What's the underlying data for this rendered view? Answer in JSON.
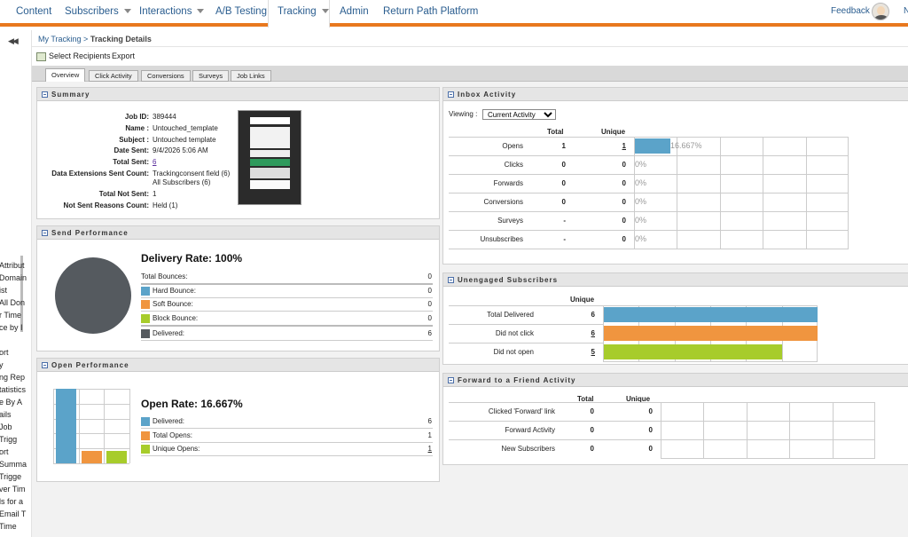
{
  "nav": {
    "items": [
      {
        "label": "Content",
        "caret": false
      },
      {
        "label": "Subscribers",
        "caret": true
      },
      {
        "label": "Interactions",
        "caret": true
      },
      {
        "label": "A/B Testing",
        "caret": false
      },
      {
        "label": "Tracking",
        "caret": true
      },
      {
        "label": "Admin",
        "caret": false
      },
      {
        "label": "Return Path Platform",
        "caret": false
      }
    ],
    "feedback": "Feedback",
    "overflow": "N",
    "accent": "#e8781e"
  },
  "leftrail": {
    "collapse_icon": "double-chevron-left-icon",
    "items": [
      "Attribut",
      "Domain",
      "ist",
      "All Don",
      "r Time",
      "ce by I",
      "ort",
      "y",
      "ng Rep",
      "tatistics",
      "e By A",
      "ails",
      "Job",
      "Trigg",
      "ort",
      "Summa",
      "Trigge",
      "ver Tim",
      "ls for a",
      "Email T",
      "Time"
    ]
  },
  "breadcrumb": {
    "root": "My Tracking",
    "separator": ">",
    "current": "Tracking Details"
  },
  "toolbar": {
    "select_recipients": "Select Recipients",
    "export": "Export"
  },
  "tabs": [
    "Overview",
    "Click Activity",
    "Conversions",
    "Surveys",
    "Job Links"
  ],
  "summary": {
    "title": "Summary",
    "labels": {
      "job_id": "Job ID:",
      "name": "Name :",
      "subject": "Subject :",
      "date_sent": "Date Sent:",
      "total_sent": "Total Sent:",
      "de_sent_count": "Data Extensions Sent Count:",
      "total_not_sent": "Total Not Sent:",
      "not_sent_reasons": "Not Sent Reasons Count:"
    },
    "values": {
      "job_id": "389444",
      "name": "Untouched_template",
      "subject": "Untouched template",
      "date_sent": "9/4/2026 5:06 AM",
      "total_sent": "6",
      "de_line1": "Trackingconsent field (6)",
      "de_line2": "All Subscribers (6)",
      "total_not_sent": "1",
      "not_sent_reasons": "Held (1)"
    }
  },
  "send_performance": {
    "title": "Send Performance",
    "delivery_rate": "Delivery Rate: 100%",
    "rows": [
      {
        "label": "Total Bounces:",
        "value": "0",
        "color": ""
      },
      {
        "label": "Hard Bounce:",
        "value": "0",
        "color": "#5ba3c9"
      },
      {
        "label": "Soft Bounce:",
        "value": "0",
        "color": "#f0953f"
      },
      {
        "label": "Block Bounce:",
        "value": "0",
        "color": "#a7cc2b"
      },
      {
        "label": "Delivered:",
        "value": "6",
        "color": "#555a5f"
      }
    ],
    "pie_color": "#555a5f"
  },
  "open_performance": {
    "title": "Open Performance",
    "open_rate": "Open Rate: 16.667%",
    "rows": [
      {
        "label": "Delivered:",
        "value": "6",
        "color": "#5ba3c9",
        "link": false
      },
      {
        "label": "Total Opens:",
        "value": "1",
        "color": "#f0953f",
        "link": false
      },
      {
        "label": "Unique Opens:",
        "value": "1",
        "color": "#a7cc2b",
        "link": true
      }
    ],
    "bars": [
      6,
      1,
      1
    ]
  },
  "inbox_activity": {
    "title": "Inbox Activity",
    "viewing_label": "Viewing :",
    "viewing_value": "Current Activity",
    "col_total": "Total",
    "col_unique": "Unique",
    "rows": [
      {
        "label": "Opens",
        "total": "1",
        "unique": "1",
        "unique_link": true,
        "pct": "16.667%",
        "fraction": 0.16667
      },
      {
        "label": "Clicks",
        "total": "0",
        "unique": "0",
        "unique_link": false,
        "pct": "0%",
        "fraction": 0
      },
      {
        "label": "Forwards",
        "total": "0",
        "unique": "0",
        "unique_link": false,
        "pct": "0%",
        "fraction": 0
      },
      {
        "label": "Conversions",
        "total": "0",
        "unique": "0",
        "unique_link": false,
        "pct": "0%",
        "fraction": 0
      },
      {
        "label": "Surveys",
        "total": "-",
        "unique": "0",
        "unique_link": false,
        "pct": "0%",
        "fraction": 0
      },
      {
        "label": "Unsubscribes",
        "total": "-",
        "unique": "0",
        "unique_link": false,
        "pct": "0%",
        "fraction": 0
      }
    ]
  },
  "unengaged": {
    "title": "Unengaged Subscribers",
    "col_unique": "Unique",
    "rows": [
      {
        "label": "Total Delivered",
        "value": "6",
        "link": false,
        "fraction": 1.0,
        "color": "#5ba3c9"
      },
      {
        "label": "Did not click",
        "value": "6",
        "link": true,
        "fraction": 1.0,
        "color": "#f0953f"
      },
      {
        "label": "Did not open",
        "value": "5",
        "link": true,
        "fraction": 0.8333,
        "color": "#a7cc2b"
      }
    ]
  },
  "forward": {
    "title": "Forward to a Friend Activity",
    "col_total": "Total",
    "col_unique": "Unique",
    "rows": [
      {
        "label": "Clicked 'Forward' link",
        "total": "0",
        "unique": "0"
      },
      {
        "label": "Forward Activity",
        "total": "0",
        "unique": "0"
      },
      {
        "label": "New Subscribers",
        "total": "0",
        "unique": "0"
      }
    ]
  }
}
